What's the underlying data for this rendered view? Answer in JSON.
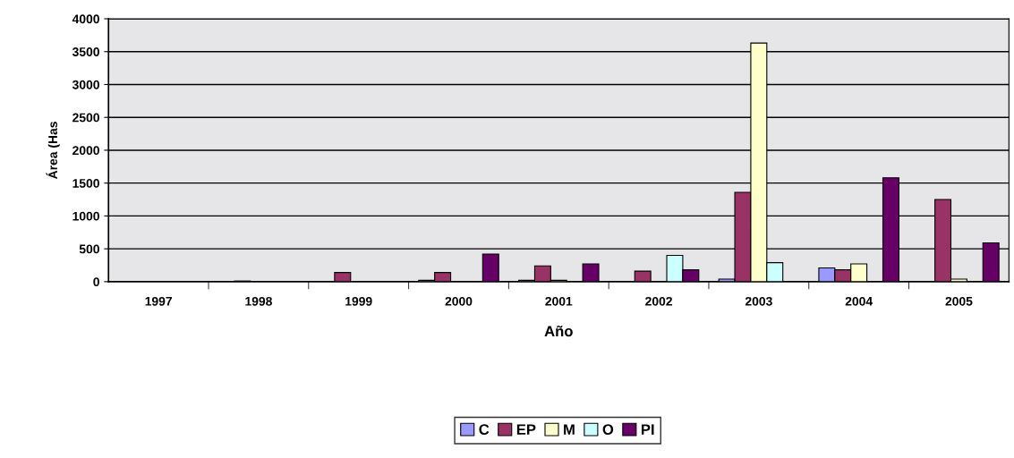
{
  "chart_data": {
    "type": "bar",
    "xlabel": "Año",
    "ylabel": "Área (Has",
    "categories": [
      "1997",
      "1998",
      "1999",
      "2000",
      "2001",
      "2002",
      "2003",
      "2004",
      "2005"
    ],
    "series": [
      {
        "name": "C",
        "color": "#9999ff",
        "values": [
          null,
          null,
          null,
          20,
          20,
          null,
          40,
          210,
          null
        ]
      },
      {
        "name": "EP",
        "color": "#993366",
        "values": [
          null,
          10,
          140,
          140,
          240,
          160,
          1360,
          180,
          1250
        ]
      },
      {
        "name": "M",
        "color": "#ffffcc",
        "values": [
          null,
          null,
          null,
          null,
          20,
          null,
          3630,
          270,
          40
        ]
      },
      {
        "name": "O",
        "color": "#ccffff",
        "values": [
          null,
          null,
          null,
          null,
          null,
          400,
          290,
          null,
          null
        ]
      },
      {
        "name": "PI",
        "color": "#660066",
        "values": [
          null,
          null,
          null,
          420,
          270,
          180,
          null,
          1580,
          590
        ]
      }
    ],
    "ylim": [
      0,
      4000
    ],
    "yticks": [
      0,
      500,
      1000,
      1500,
      2000,
      2500,
      3000,
      3500,
      4000
    ],
    "grid": "y",
    "legend": "bottom"
  }
}
